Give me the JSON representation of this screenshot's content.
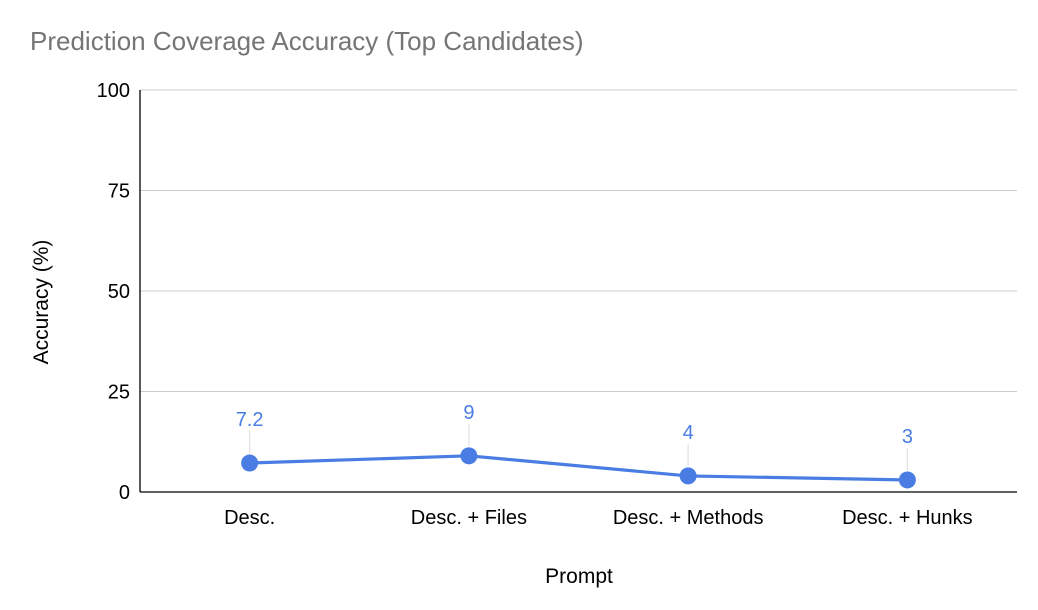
{
  "chart_data": {
    "type": "line",
    "title": "Prediction Coverage Accuracy (Top Candidates)",
    "xlabel": "Prompt",
    "ylabel": "Accuracy (%)",
    "categories": [
      "Desc.",
      "Desc. + Files",
      "Desc. + Methods",
      "Desc. + Hunks"
    ],
    "series": [
      {
        "values": [
          7.2,
          9,
          4,
          3
        ],
        "labels": [
          "7.2",
          "9",
          "4",
          "3"
        ],
        "color": "#4a7de3"
      }
    ],
    "ylim": [
      0,
      100
    ],
    "yticks": [
      0,
      25,
      50,
      75,
      100
    ],
    "grid": true,
    "legend": "none",
    "colors": {
      "title": "#757575",
      "grid": "#cccccc",
      "axis": "#000000",
      "series": "#4a7de3",
      "leader": "#e0e0e0"
    }
  }
}
